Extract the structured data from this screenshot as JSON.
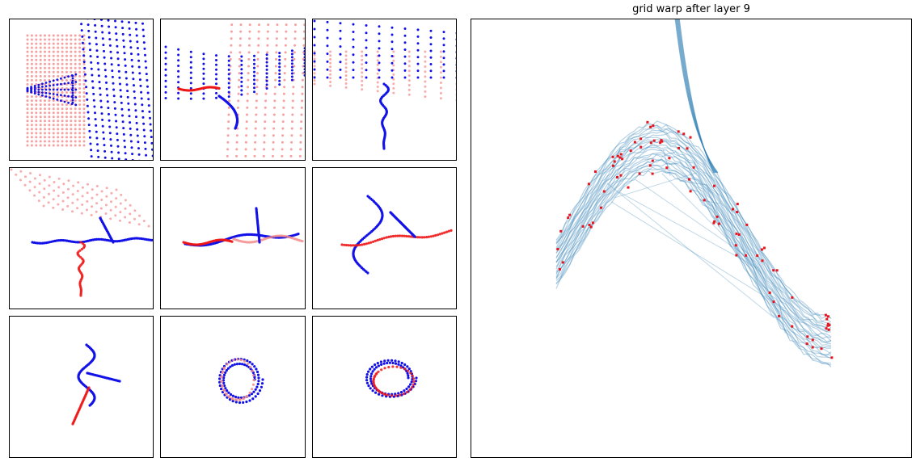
{
  "title": "grid warp after layer 9",
  "colors": {
    "input_light": "#f48a8a",
    "input_strong": "#ee1515",
    "hidden": "#1212e8",
    "grid": "#2f7fb4",
    "points": "#e8141e"
  },
  "chart_data": [
    {
      "type": "scatter",
      "layer": 1
    },
    {
      "type": "scatter",
      "layer": 2
    },
    {
      "type": "scatter",
      "layer": 3
    },
    {
      "type": "scatter",
      "layer": 4
    },
    {
      "type": "scatter",
      "layer": 5
    },
    {
      "type": "scatter",
      "layer": 6
    },
    {
      "type": "scatter",
      "layer": 7
    },
    {
      "type": "scatter",
      "layer": 8
    },
    {
      "type": "scatter",
      "layer": 9
    },
    {
      "type": "line",
      "title": "grid warp after layer 9",
      "grid": false
    }
  ]
}
